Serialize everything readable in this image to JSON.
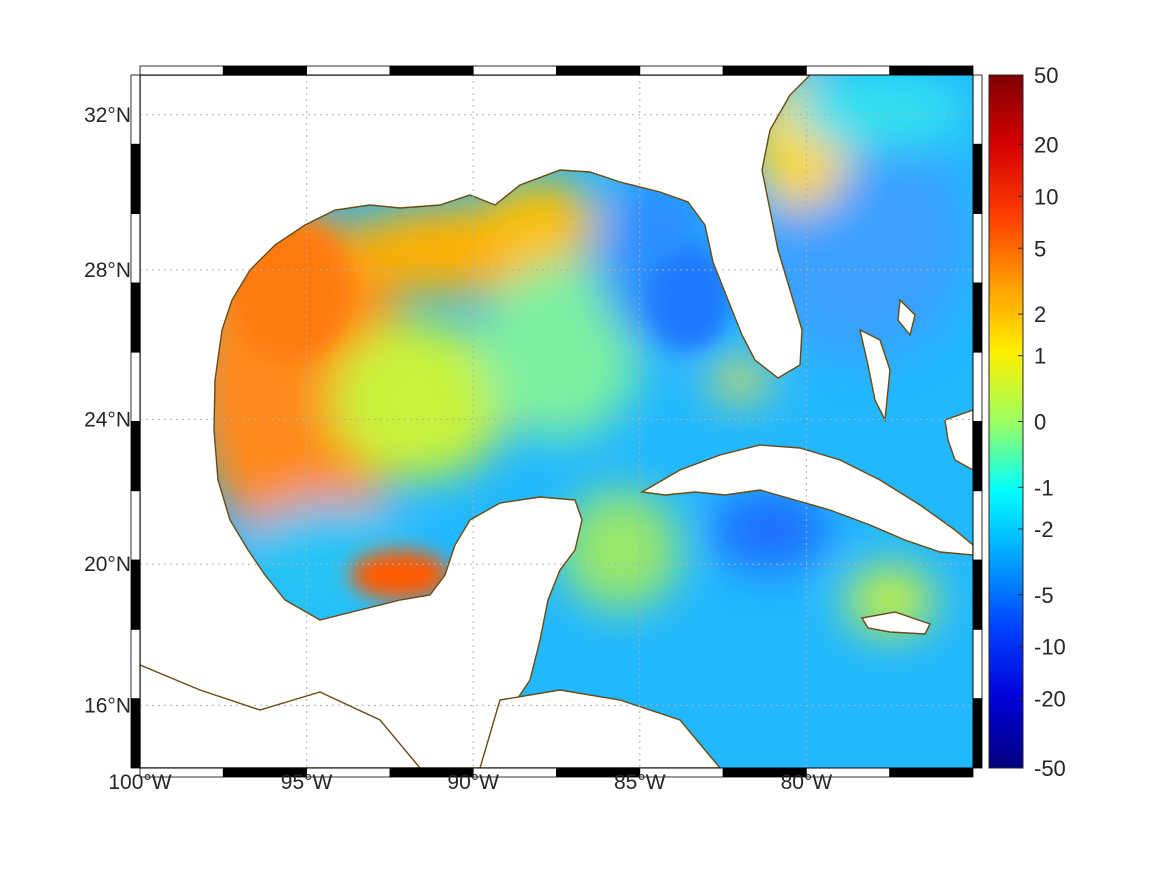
{
  "map": {
    "projection": "mercator",
    "lon_range": [
      -100,
      -75
    ],
    "lat_range": [
      14.2,
      33
    ],
    "lon_ticks": [
      {
        "value": -100,
        "label": "100°W"
      },
      {
        "value": -95,
        "label": "95°W"
      },
      {
        "value": -90,
        "label": "90°W"
      },
      {
        "value": -85,
        "label": "85°W"
      },
      {
        "value": -80,
        "label": "80°W"
      }
    ],
    "lat_ticks": [
      {
        "value": 32,
        "label": "32°N"
      },
      {
        "value": 28,
        "label": "28°N"
      },
      {
        "value": 24,
        "label": "24°N"
      },
      {
        "value": 20,
        "label": "20°N"
      },
      {
        "value": 16,
        "label": "16°N"
      }
    ],
    "grid": "dotted",
    "frame_style": "black-and-white alternating border",
    "coastline_color": "#6b4a12",
    "land_color": "#ffffff",
    "colorbar": {
      "colormap": "jet",
      "scale": "nonlinear (symmetric, compressed toward extremes)",
      "ticks": [
        "50",
        "20",
        "10",
        "5",
        "2",
        "1",
        "0",
        "-1",
        "-2",
        "-5",
        "-10",
        "-20",
        "-50"
      ],
      "range": [
        -50,
        50
      ]
    },
    "field_summary": [
      {
        "region": "western Gulf of Mexico (Texas/Tamaulipas shelf)",
        "value": 5
      },
      {
        "region": "northern Gulf (Louisiana/Mississippi)",
        "value": 3
      },
      {
        "region": "Bay of Campeche eddy",
        "value": 7
      },
      {
        "region": "eastern Gulf near west Florida",
        "value": -3
      },
      {
        "region": "central Gulf",
        "value": 0
      },
      {
        "region": "Caribbean / north of Cuba",
        "value": -2
      },
      {
        "region": "Atlantic off Georgia/NE Florida",
        "value": 2
      },
      {
        "region": "south of Cuba",
        "value": -5
      }
    ]
  }
}
